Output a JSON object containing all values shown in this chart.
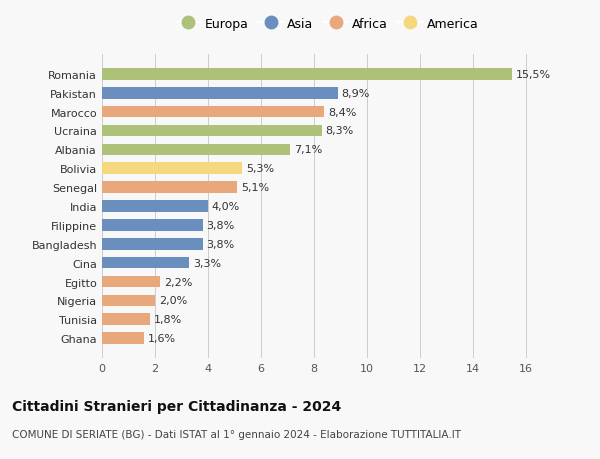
{
  "countries": [
    "Romania",
    "Pakistan",
    "Marocco",
    "Ucraina",
    "Albania",
    "Bolivia",
    "Senegal",
    "India",
    "Filippine",
    "Bangladesh",
    "Cina",
    "Egitto",
    "Nigeria",
    "Tunisia",
    "Ghana"
  ],
  "values": [
    15.5,
    8.9,
    8.4,
    8.3,
    7.1,
    5.3,
    5.1,
    4.0,
    3.8,
    3.8,
    3.3,
    2.2,
    2.0,
    1.8,
    1.6
  ],
  "labels": [
    "15,5%",
    "8,9%",
    "8,4%",
    "8,3%",
    "7,1%",
    "5,3%",
    "5,1%",
    "4,0%",
    "3,8%",
    "3,8%",
    "3,3%",
    "2,2%",
    "2,0%",
    "1,8%",
    "1,6%"
  ],
  "continents": [
    "Europa",
    "Asia",
    "Africa",
    "Europa",
    "Europa",
    "America",
    "Africa",
    "Asia",
    "Asia",
    "Asia",
    "Asia",
    "Africa",
    "Africa",
    "Africa",
    "Africa"
  ],
  "colors": {
    "Europa": "#adc178",
    "Asia": "#6a8fbe",
    "Africa": "#e8a87c",
    "America": "#f5d87e"
  },
  "xlim": [
    0,
    17
  ],
  "xticks": [
    0,
    2,
    4,
    6,
    8,
    10,
    12,
    14,
    16
  ],
  "title": "Cittadini Stranieri per Cittadinanza - 2024",
  "subtitle": "COMUNE DI SERIATE (BG) - Dati ISTAT al 1° gennaio 2024 - Elaborazione TUTTITALIA.IT",
  "background_color": "#f8f8f8",
  "grid_color": "#cccccc",
  "bar_height": 0.62,
  "label_fontsize": 8,
  "title_fontsize": 10,
  "subtitle_fontsize": 7.5,
  "ytick_fontsize": 8,
  "xtick_fontsize": 8,
  "legend_order": [
    "Europa",
    "Asia",
    "Africa",
    "America"
  ],
  "legend_fontsize": 9
}
